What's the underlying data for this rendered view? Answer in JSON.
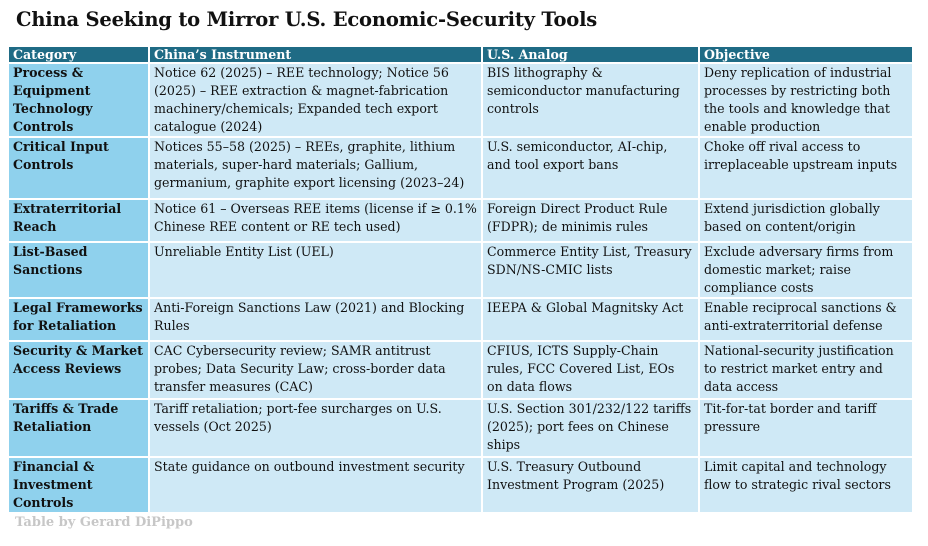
{
  "title": "China Seeking to Mirror U.S. Economic-Security Tools",
  "table": {
    "headers": [
      "Category",
      "China’s Instrument",
      "U.S. Analog",
      "Objective"
    ],
    "rows": [
      {
        "category": "Process & Equipment Technology Controls",
        "china": "Notice 62 (2025) – REE technology; Notice 56 (2025) – REE extraction & magnet-fabrication machinery/chemicals; Expanded tech export catalogue (2024)",
        "us": "BIS lithography & semiconductor manufacturing controls",
        "objective": "Deny replication of industrial processes by restricting both the tools and knowledge that enable production"
      },
      {
        "category": "Critical Input Controls",
        "china": "Notices 55–58 (2025) – REEs, graphite, lithium materials, super-hard materials; Gallium, germanium, graphite export licensing (2023–24)",
        "us": "U.S. semiconductor, AI-chip, and tool export bans",
        "objective": "Choke off rival access to irreplaceable upstream inputs"
      },
      {
        "category": "Extraterritorial Reach",
        "china": "Notice 61 – Overseas REE items (license if ≥ 0.1% Chinese REE content or RE tech used)",
        "us": "Foreign Direct Product Rule (FDPR); de minimis rules",
        "objective": "Extend jurisdiction globally based on content/origin"
      },
      {
        "category": "List-Based Sanctions",
        "china": "Unreliable Entity List (UEL)",
        "us": "Commerce Entity List, Treasury SDN/NS-CMIC lists",
        "objective": "Exclude adversary firms from domestic market; raise compliance costs"
      },
      {
        "category": "Legal Frameworks for Retaliation",
        "china": "Anti-Foreign Sanctions Law (2021) and Blocking Rules",
        "us": "IEEPA & Global Magnitsky Act",
        "objective": "Enable reciprocal sanctions & anti-extraterritorial defense"
      },
      {
        "category": "Security & Market Access Reviews",
        "china": "CAC Cybersecurity review; SAMR antitrust probes; Data Security Law; cross-border data transfer measures (CAC)",
        "us": "CFIUS, ICTS Supply-Chain rules, FCC Covered List, EOs on data flows",
        "objective": "National-security justification to restrict market entry and data access"
      },
      {
        "category": "Tariffs & Trade Retaliation",
        "china": "Tariff retaliation; port-fee surcharges on U.S. vessels (Oct 2025)",
        "us": "U.S. Section 301/232/122 tariffs (2025); port fees on Chinese ships",
        "objective": "Tit-for-tat border and tariff pressure"
      },
      {
        "category": "Financial & Investment Controls",
        "china": "State guidance on outbound investment security",
        "us": "U.S. Treasury Outbound Investment Program (2025)",
        "objective": "Limit capital and technology flow to strategic rival sectors"
      }
    ]
  },
  "credit": "Table by Gerard DiPippo"
}
